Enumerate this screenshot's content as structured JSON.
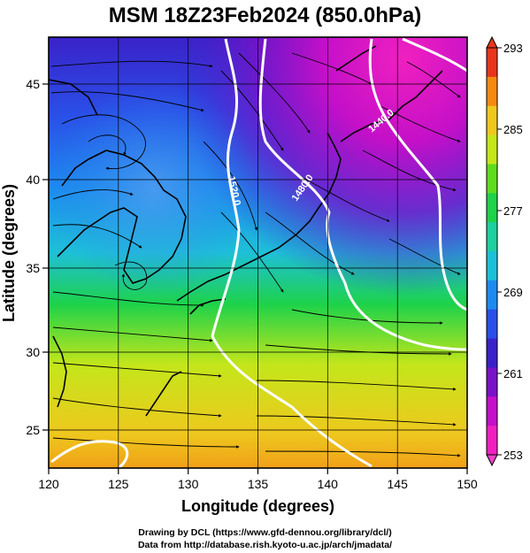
{
  "title": "MSM 18Z23Feb2024 (850.0hPa)",
  "x_axis": {
    "label": "Longitude (degrees)",
    "ticks": [
      "120",
      "125",
      "130",
      "135",
      "140",
      "145",
      "150"
    ],
    "range": [
      120,
      150
    ]
  },
  "y_axis": {
    "label": "Latitude  (degrees)",
    "ticks": [
      "25",
      "30",
      "35",
      "40",
      "45"
    ],
    "range": [
      22.4,
      47.6
    ]
  },
  "colorbar": {
    "ticks": [
      "293",
      "285",
      "277",
      "269",
      "261",
      "253"
    ],
    "range": [
      253,
      293
    ],
    "colors_top_to_bottom": [
      "#e8351c",
      "#f58a12",
      "#eec81e",
      "#c4e61a",
      "#5fdc1e",
      "#1ed24a",
      "#1ecfa0",
      "#1ec0d8",
      "#1e8aee",
      "#2a4fe8",
      "#3a22c8",
      "#7a12c8",
      "#c410c8",
      "#f020c0"
    ]
  },
  "contours": [
    {
      "label": "1520.0"
    },
    {
      "label": "1480.0"
    },
    {
      "label": "1440.0"
    }
  ],
  "credits": {
    "line1": "Drawing by DCL (https://www.gfd-dennou.org/library/dcl/)",
    "line2": "Data from http://database.rish.kyoto-u.ac.jp/arch/jmadata/"
  },
  "colors": {
    "frame": "#000000",
    "contour": "#ffffff",
    "streamline": "#000000"
  }
}
